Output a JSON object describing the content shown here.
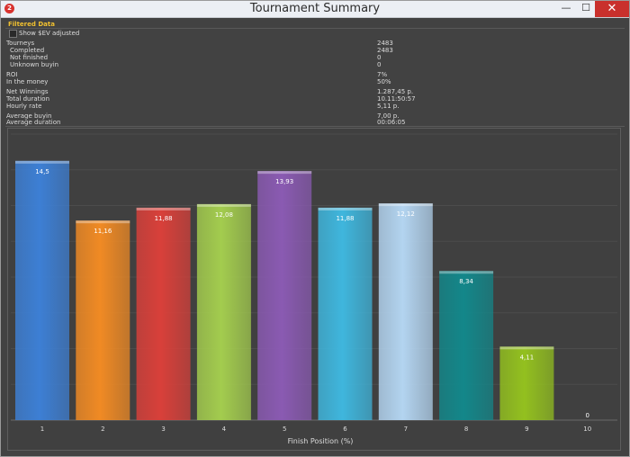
{
  "window": {
    "title": "Tournament Summary",
    "app_icon_text": "2",
    "minimize_glyph": "—",
    "maximize_glyph": "☐",
    "close_glyph": "✕"
  },
  "filter": {
    "header": "Filtered Data",
    "sev_label": "Show $EV adjusted",
    "sev_checked": false
  },
  "stats": [
    {
      "label": "Tourneys",
      "value": "2483"
    },
    {
      "label": "Completed",
      "value": "2483"
    },
    {
      "label": "Not finished",
      "value": "0"
    },
    {
      "label": "Unknown buyin",
      "value": "0"
    },
    {
      "label": "ROI",
      "value": "7%"
    },
    {
      "label": "In the money",
      "value": "50%"
    },
    {
      "label": "Net Winnings",
      "value": "1.287,45 p."
    },
    {
      "label": "Total duration",
      "value": "10.11:50:57"
    },
    {
      "label": "Hourly rate",
      "value": "5,11 p."
    },
    {
      "label": "Average buyin",
      "value": "7,00 p."
    },
    {
      "label": "Average duration",
      "value": "00:06:05"
    }
  ],
  "chart_data": {
    "type": "bar",
    "categories": [
      "1",
      "2",
      "3",
      "4",
      "5",
      "6",
      "7",
      "8",
      "9",
      "10"
    ],
    "values": [
      14.5,
      11.16,
      11.88,
      12.08,
      13.93,
      11.88,
      12.12,
      8.34,
      4.11,
      0
    ],
    "value_labels": [
      "14,5",
      "11,16",
      "11,88",
      "12,08",
      "13,93",
      "11,88",
      "12,12",
      "8,34",
      "4,11",
      "0"
    ],
    "xlabel": "Finish Position (%)",
    "ylim": [
      0,
      16
    ],
    "grid": true,
    "bar_colors": [
      "#3d7fd4",
      "#f08a24",
      "#d8403a",
      "#a3cc4e",
      "#8a5ab2",
      "#3fb6dd",
      "#b3d4f0",
      "#13878a",
      "#93c01f",
      "#888888"
    ]
  }
}
